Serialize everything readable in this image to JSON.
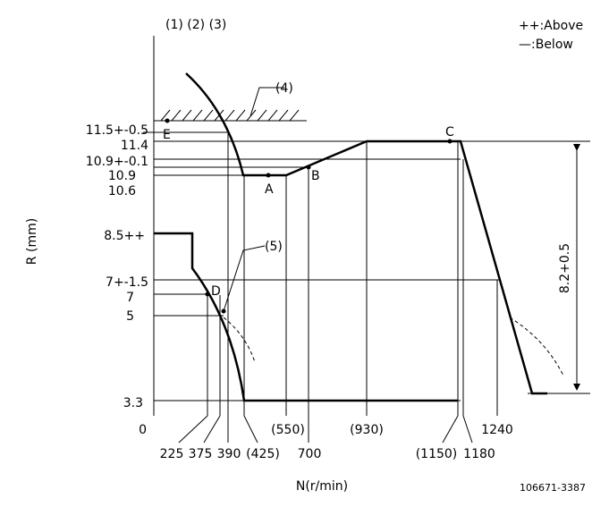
{
  "header": {
    "columns": "(1) (2) (3)"
  },
  "legend": [
    "++:Above",
    "—:Below"
  ],
  "annotations": {
    "hatch": "(4)",
    "curve": "(5)",
    "stroke": "8.2+0.5"
  },
  "points": {
    "A": "A",
    "B": "B",
    "C": "C",
    "D": "D",
    "E": "E"
  },
  "y_labels": [
    "11.5+-0.5",
    "11.4",
    "10.9+-0.1",
    "10.9",
    "10.6",
    "8.5++",
    "7+-1.5",
    "7",
    "5",
    "3.3",
    "0"
  ],
  "x_labels_upper": [
    "(550)",
    "(930)",
    "1240"
  ],
  "x_labels_lower": [
    "225",
    "375",
    "390",
    "(425)",
    "700",
    "(1150)",
    "1180"
  ],
  "axes": {
    "y_title": "R (mm)",
    "x_title": "N(r/min)"
  },
  "footer": {
    "code": "106671-3387"
  }
}
